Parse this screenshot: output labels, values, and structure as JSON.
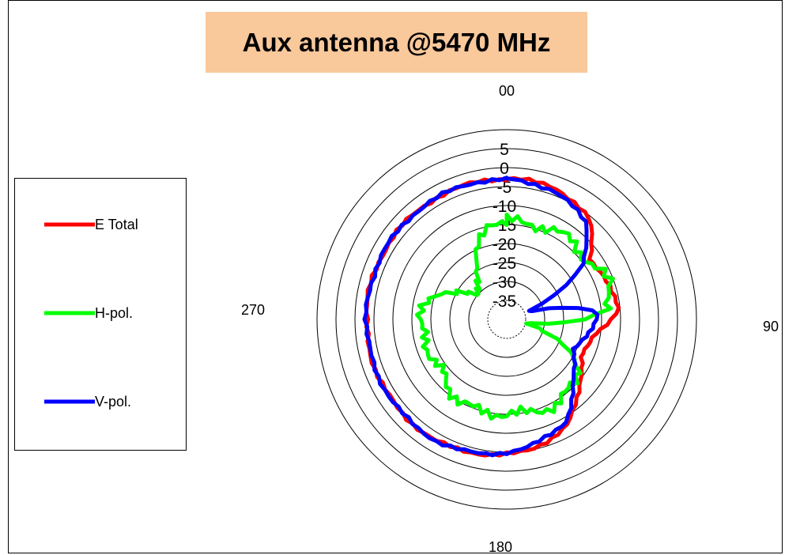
{
  "chart_data": {
    "type": "polar-line",
    "title": "Aux antenna @5470 MHz",
    "angle_labels": [
      "00",
      "90",
      "180",
      "270"
    ],
    "radial_labels": [
      "5",
      "0",
      "-5",
      "-10",
      "-15",
      "-20",
      "-25",
      "-30",
      "-35"
    ],
    "rlim": [
      -40,
      10
    ],
    "angle_direction": "clockwise",
    "angle_zero": "top",
    "legend": {
      "position": "left"
    },
    "series": [
      {
        "name": "E Total",
        "color": "#ff0000",
        "theta": [
          0,
          20,
          40,
          55,
          70,
          85,
          100,
          115,
          130,
          150,
          170,
          190,
          210,
          230,
          250,
          270,
          290,
          310,
          330,
          350,
          360
        ],
        "r": [
          -3,
          -3,
          -6,
          -13,
          -12,
          -10,
          -17,
          -18,
          -15,
          -8,
          -5,
          -4,
          -3,
          -3,
          -3,
          -3,
          -3,
          -3,
          -3,
          -3,
          -3
        ]
      },
      {
        "name": "H-pol.",
        "color": "#00ff00",
        "theta": [
          0,
          20,
          40,
          55,
          70,
          85,
          100,
          115,
          130,
          150,
          170,
          190,
          210,
          230,
          250,
          270,
          290,
          310,
          330,
          350,
          360
        ],
        "r": [
          -14,
          -14,
          -13,
          -14,
          -11,
          -13,
          -36,
          -22,
          -16,
          -14,
          -15,
          -15,
          -15,
          -18,
          -18,
          -17,
          -20,
          -31,
          -24,
          -14,
          -14
        ]
      },
      {
        "name": "V-pol.",
        "color": "#0000ff",
        "theta": [
          0,
          20,
          40,
          55,
          70,
          85,
          100,
          115,
          130,
          150,
          170,
          190,
          210,
          230,
          250,
          270,
          290,
          310,
          330,
          350,
          360
        ],
        "r": [
          -3,
          -4,
          -7,
          -16,
          -35,
          -16,
          -18,
          -21,
          -17,
          -9,
          -6,
          -4,
          -3,
          -3,
          -3,
          -3,
          -3,
          -3,
          -3,
          -3,
          -3
        ]
      }
    ]
  }
}
